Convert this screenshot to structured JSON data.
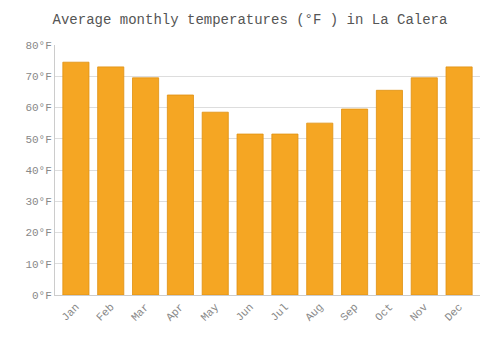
{
  "chart_data": {
    "type": "bar",
    "title": "Average monthly temperatures (°F ) in La Calera",
    "categories": [
      "Jan",
      "Feb",
      "Mar",
      "Apr",
      "May",
      "Jun",
      "Jul",
      "Aug",
      "Sep",
      "Oct",
      "Nov",
      "Dec"
    ],
    "values": [
      74.5,
      73,
      69.5,
      64,
      58.5,
      51.5,
      51.5,
      55,
      59.5,
      65.5,
      69.5,
      73
    ],
    "color": "#F5A623",
    "ylim": [
      0,
      80
    ],
    "yticks": [
      {
        "value": 0,
        "label": "0°F"
      },
      {
        "value": 10,
        "label": "10°F"
      },
      {
        "value": 20,
        "label": "20°F"
      },
      {
        "value": 30,
        "label": "30°F"
      },
      {
        "value": 40,
        "label": "40°F"
      },
      {
        "value": 50,
        "label": "50°F"
      },
      {
        "value": 60,
        "label": "60°F"
      },
      {
        "value": 70,
        "label": "70°F"
      },
      {
        "value": 80,
        "label": "80°F"
      }
    ],
    "grid": true
  }
}
